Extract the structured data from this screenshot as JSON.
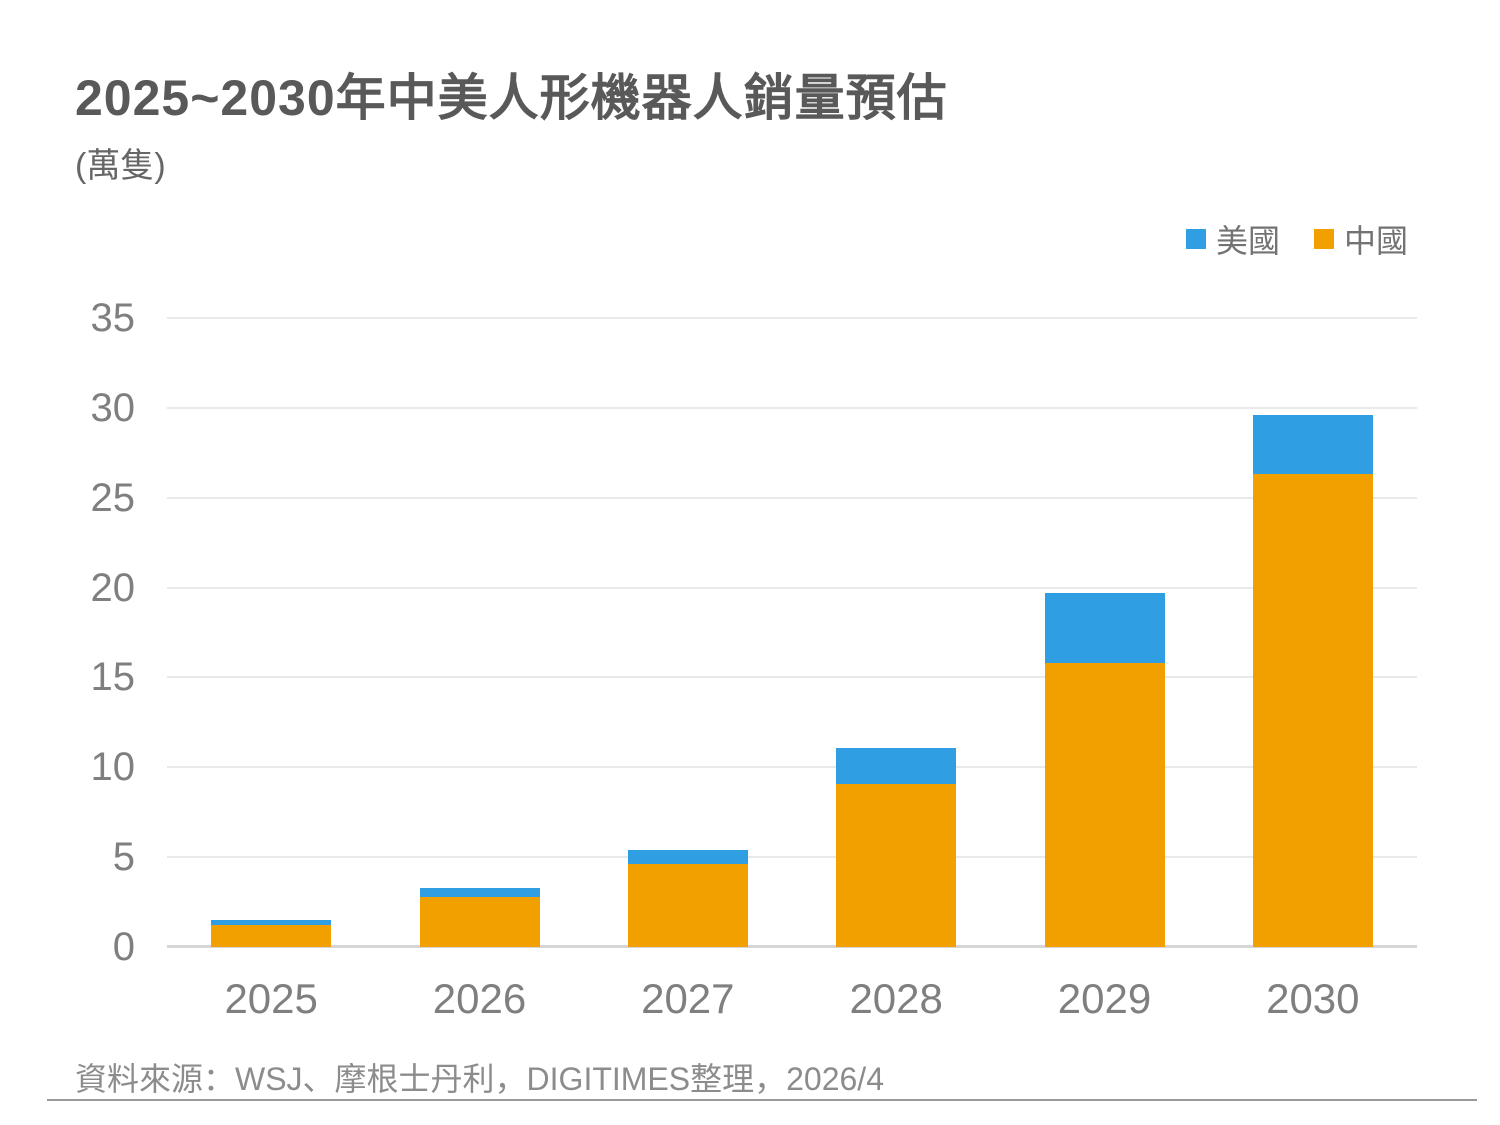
{
  "chart_data": {
    "type": "bar",
    "stacked": true,
    "title": "2025~2030年中美人形機器人銷量預估",
    "unit_label": "(萬隻)",
    "categories": [
      "2025",
      "2026",
      "2027",
      "2028",
      "2029",
      "2030"
    ],
    "series": [
      {
        "name": "美國",
        "color": "#2f9ee3",
        "values": [
          0.3,
          0.5,
          0.8,
          2.0,
          3.9,
          3.3
        ]
      },
      {
        "name": "中國",
        "color": "#f2a000",
        "values": [
          1.2,
          2.8,
          4.6,
          9.1,
          15.8,
          26.3
        ]
      }
    ],
    "totals": [
      1.5,
      3.3,
      5.4,
      11.1,
      19.7,
      29.6
    ],
    "ylim": [
      0,
      35
    ],
    "yticks": [
      0,
      5,
      10,
      15,
      20,
      25,
      30,
      35
    ],
    "grid": true,
    "legend_position": "top-right",
    "gridline_color": "#e9e9e9",
    "axis_color": "#d6d6d6",
    "text_color": "#7f7f7f"
  },
  "footer": {
    "source": "資料來源：WSJ、摩根士丹利，DIGITIMES整理，2026/4"
  }
}
